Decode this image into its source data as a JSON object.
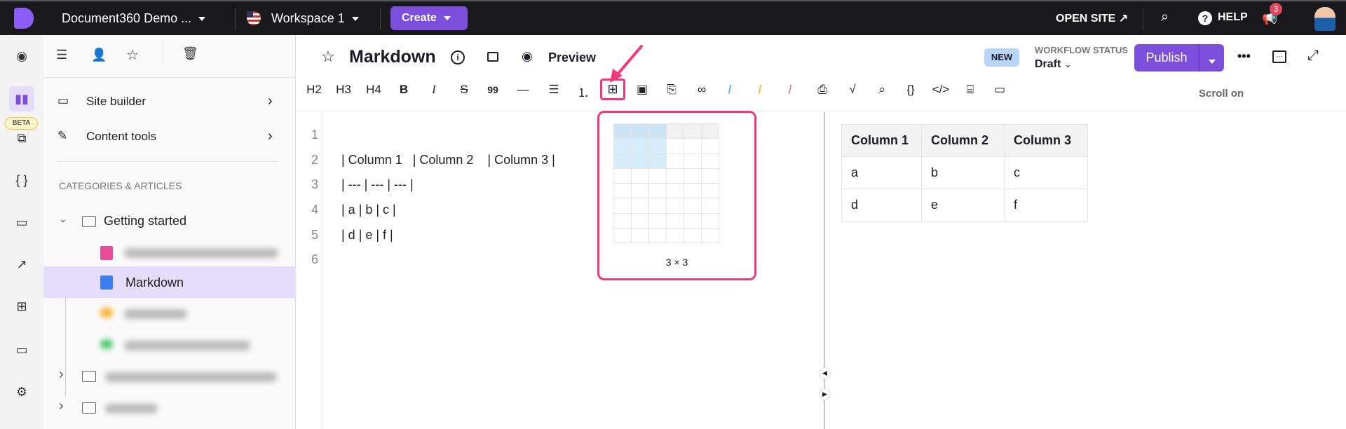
{
  "topbar": {
    "project": "Document360 Demo ...",
    "workspace": "Workspace 1",
    "create": "Create",
    "open_site": "OPEN SITE",
    "help": "HELP",
    "notifications": "3"
  },
  "rail": {
    "beta": "BETA",
    "icons": [
      "dashboard-icon",
      "documentation-icon",
      "api-docs-icon",
      "code-icon",
      "feedback-icon",
      "analytics-icon",
      "integrations-icon",
      "widget-icon",
      "settings-icon"
    ]
  },
  "sidebar": {
    "site_builder": "Site builder",
    "content_tools": "Content tools",
    "section": "CATEGORIES & ARTICLES",
    "category": "Getting started",
    "active_article": "Markdown"
  },
  "header": {
    "title": "Markdown",
    "preview": "Preview",
    "badge": "NEW",
    "workflow_label": "WORKFLOW STATUS",
    "workflow_value": "Draft",
    "publish": "Publish"
  },
  "toolbar": {
    "items": [
      "H2",
      "H3",
      "H4",
      "B",
      "I",
      "S",
      "99",
      "—"
    ],
    "scroll": "Scroll on"
  },
  "editor": {
    "lines": [
      "",
      "| Column 1   | Column 2    | Column 3 |",
      "| --- | --- | --- |",
      "| a | b | c |",
      "| d | e | f |",
      ""
    ]
  },
  "table_picker": {
    "selected": "3 × 3",
    "rows_selected": 3,
    "cols_selected": 3
  },
  "preview_table": {
    "headers": [
      "Column 1",
      "Column 2",
      "Column 3"
    ],
    "rows": [
      [
        "a",
        "b",
        "c"
      ],
      [
        "d",
        "e",
        "f"
      ]
    ]
  },
  "colors": {
    "accent": "#7b4fdb",
    "highlight": "#f0387d",
    "active_row": "#e6dcfb"
  }
}
